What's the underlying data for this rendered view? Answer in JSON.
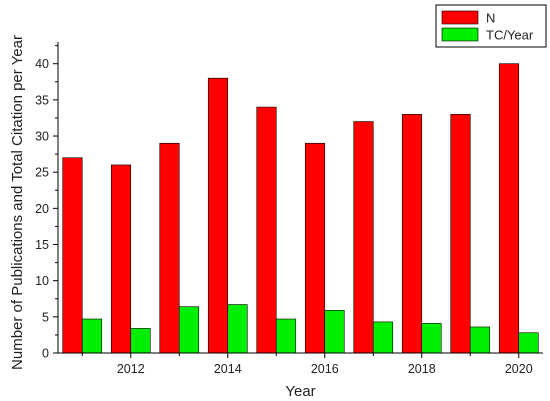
{
  "chart_data": {
    "type": "bar",
    "categories": [
      "2011",
      "2012",
      "2013",
      "2014",
      "2015",
      "2016",
      "2017",
      "2018",
      "2019",
      "2020"
    ],
    "x_tick_labels": [
      "2012",
      "2014",
      "2016",
      "2018",
      "2020"
    ],
    "y_ticks": [
      0,
      5,
      10,
      15,
      20,
      25,
      30,
      35,
      40
    ],
    "series": [
      {
        "name": "N",
        "color": "#ff0000",
        "values": [
          27,
          26,
          29,
          38,
          34,
          29,
          32,
          33,
          33,
          40
        ]
      },
      {
        "name": "TC/Year",
        "color": "#00ee00",
        "values": [
          4.7,
          3.4,
          6.4,
          6.7,
          4.7,
          5.9,
          4.3,
          4.1,
          3.6,
          2.8
        ]
      }
    ],
    "title": "",
    "xlabel": "Year",
    "ylabel": "Number of Publications and Total Citation per Year",
    "ylim": [
      0,
      43
    ],
    "grid": false,
    "legend_position": "top-right"
  }
}
